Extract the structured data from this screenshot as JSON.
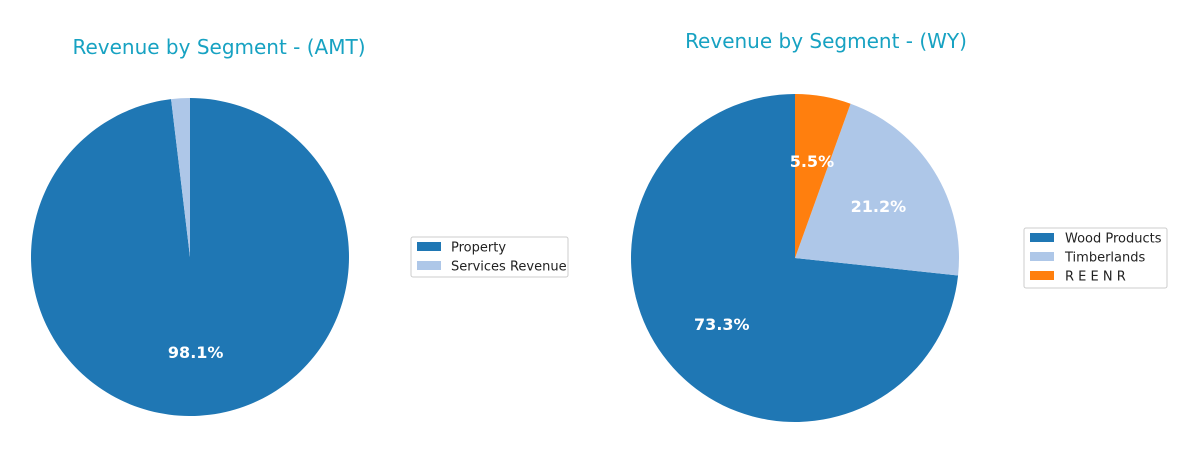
{
  "chart_data": [
    {
      "type": "pie",
      "title": "Revenue by Segment - (AMT)",
      "labels": [
        "Property",
        "Services Revenue"
      ],
      "values": [
        98.1,
        1.9
      ],
      "pct_labels": [
        "98.1%",
        ""
      ],
      "colors": [
        "#1f77b4",
        "#aec7e8"
      ],
      "start_angle_deg": 90,
      "direction": "clockwise-from-top",
      "legend": "right"
    },
    {
      "type": "pie",
      "title": "Revenue by Segment - (WY)",
      "labels": [
        "Wood Products",
        "Timberlands",
        "R E E N R"
      ],
      "values": [
        73.3,
        21.2,
        5.5
      ],
      "pct_labels": [
        "73.3%",
        "21.2%",
        "5.5%"
      ],
      "colors": [
        "#1f77b4",
        "#aec7e8",
        "#ff7f0e"
      ],
      "start_angle_deg": 90,
      "direction": "counterclockwise-from-top",
      "legend": "right"
    }
  ]
}
